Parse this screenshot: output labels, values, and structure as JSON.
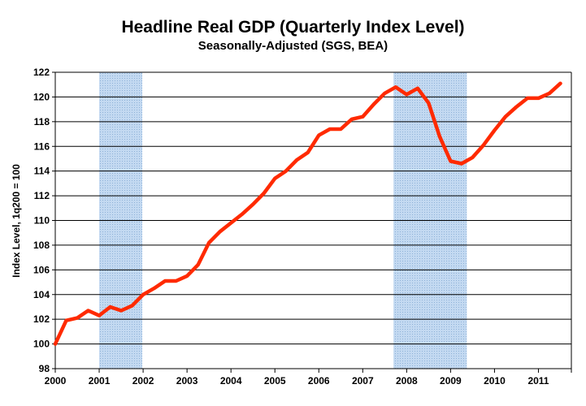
{
  "chart_data": {
    "type": "line",
    "title": "Headline Real GDP (Quarterly Index Level)",
    "subtitle": "Seasonally-Adjusted (SGS, BEA)",
    "ylabel": "Index Level, 1q200 = 100",
    "xlabel": "",
    "ylim": [
      98,
      122
    ],
    "xlim": [
      2000,
      2011.75
    ],
    "y_ticks": [
      98,
      100,
      102,
      104,
      106,
      108,
      110,
      112,
      114,
      116,
      118,
      120,
      122
    ],
    "x_ticks": [
      "2000",
      "2001",
      "2002",
      "2003",
      "2004",
      "2005",
      "2006",
      "2007",
      "2008",
      "2009",
      "2010",
      "2011"
    ],
    "grid": "horizontal",
    "recessions": [
      {
        "start": 2001.0,
        "end": 2001.98
      },
      {
        "start": 2007.7,
        "end": 2009.37
      }
    ],
    "series": [
      {
        "name": "Headline Real GDP",
        "color": "#ff2a00",
        "x": [
          2000.0,
          2000.25,
          2000.5,
          2000.75,
          2001.0,
          2001.25,
          2001.5,
          2001.75,
          2002.0,
          2002.25,
          2002.5,
          2002.75,
          2003.0,
          2003.25,
          2003.5,
          2003.75,
          2004.0,
          2004.25,
          2004.5,
          2004.75,
          2005.0,
          2005.25,
          2005.5,
          2005.75,
          2006.0,
          2006.25,
          2006.5,
          2006.75,
          2007.0,
          2007.25,
          2007.5,
          2007.75,
          2008.0,
          2008.25,
          2008.5,
          2008.75,
          2009.0,
          2009.25,
          2009.5,
          2009.75,
          2010.0,
          2010.25,
          2010.5,
          2010.75,
          2011.0,
          2011.25,
          2011.5
        ],
        "values": [
          100.0,
          101.9,
          102.1,
          102.7,
          102.3,
          103.0,
          102.7,
          103.1,
          104.0,
          104.5,
          105.1,
          105.1,
          105.5,
          106.4,
          108.2,
          109.1,
          109.8,
          110.5,
          111.3,
          112.2,
          113.4,
          114.0,
          114.9,
          115.5,
          116.9,
          117.4,
          117.4,
          118.2,
          118.4,
          119.4,
          120.3,
          120.8,
          120.2,
          120.7,
          119.5,
          116.8,
          114.8,
          114.6,
          115.1,
          116.1,
          117.3,
          118.4,
          119.2,
          119.9,
          119.9,
          120.3,
          121.1
        ]
      }
    ]
  }
}
